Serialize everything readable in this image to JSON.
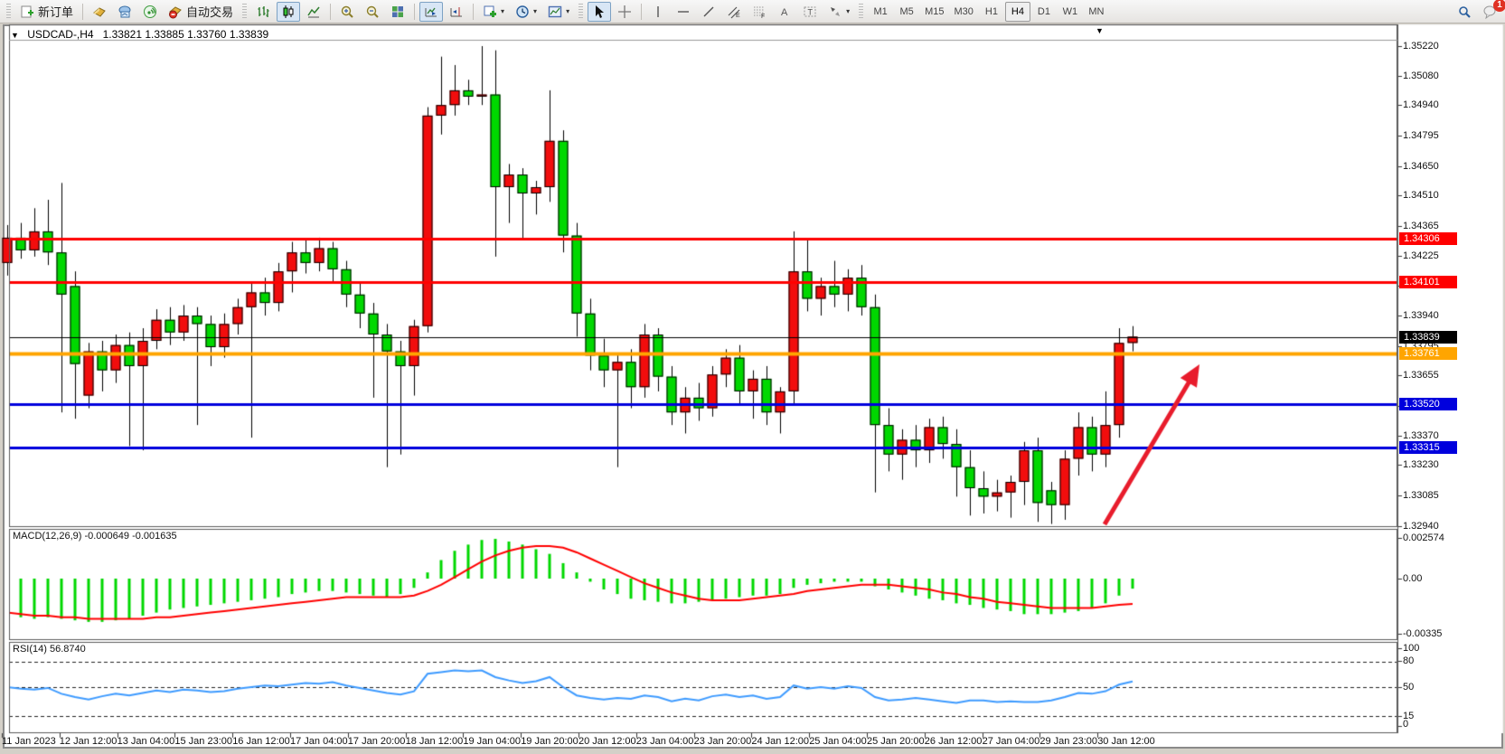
{
  "toolbar": {
    "new_order_label": "新订单",
    "auto_trading_label": "自动交易",
    "timeframes": [
      "M1",
      "M5",
      "M15",
      "M30",
      "H1",
      "H4",
      "D1",
      "W1",
      "MN"
    ],
    "active_timeframe": "H4",
    "notification_count": "1"
  },
  "chart": {
    "symbol": "USDCAD-,H4",
    "open": "1.33821",
    "high": "1.33885",
    "low": "1.33760",
    "close": "1.33839"
  },
  "macd_panel": {
    "label": "MACD(12,26,9) -0.000649 -0.001635",
    "axis_labels": [
      "0.002574",
      "0.00",
      "-0.00335"
    ]
  },
  "rsi_panel": {
    "label": "RSI(14) 56.8740",
    "axis_labels": [
      "100",
      "80",
      "50",
      "15",
      "0"
    ]
  },
  "price_axis_ticks": [
    "1.35220",
    "1.35080",
    "1.34940",
    "1.34795",
    "1.34650",
    "1.34510",
    "1.34365",
    "1.34225",
    "1.34080",
    "1.33940",
    "1.33795",
    "1.33655",
    "1.33510",
    "1.33370",
    "1.33230",
    "1.33085",
    "1.32940"
  ],
  "colors": {
    "bull": "#f20d0d",
    "bear": "#00d800",
    "wick": "#000000",
    "macd_hist": "#00d800",
    "macd_signal": "#ff0000",
    "rsi_line": "#3e9bff",
    "level_red": "#ff0000",
    "level_orange": "#ffa500",
    "level_blue": "#0000dd",
    "current_price": "#000000",
    "arrow": "#e81c2c"
  },
  "chart_data": {
    "type": "candlestick",
    "symbol": "USDCAD",
    "timeframe": "H4",
    "title": "USDCAD-,H4  1.33821 1.33885 1.33760 1.33839",
    "price_range": [
      1.3294,
      1.3522
    ],
    "time_labels": [
      "11 Jan 2023",
      "12 Jan 12:00",
      "13 Jan 04:00",
      "15 Jan 23:00",
      "16 Jan 12:00",
      "17 Jan 04:00",
      "17 Jan 20:00",
      "18 Jan 12:00",
      "19 Jan 04:00",
      "19 Jan 20:00",
      "20 Jan 12:00",
      "23 Jan 04:00",
      "23 Jan 20:00",
      "24 Jan 12:00",
      "25 Jan 04:00",
      "25 Jan 20:00",
      "26 Jan 12:00",
      "27 Jan 04:00",
      "29 Jan 23:00",
      "30 Jan 12:00"
    ],
    "horizontal_lines": [
      {
        "price": 1.34306,
        "label": "1.34306",
        "color_key": "level_red",
        "width": 3
      },
      {
        "price": 1.34101,
        "label": "1.34101",
        "color_key": "level_red",
        "width": 3
      },
      {
        "price": 1.33839,
        "label": "1.33839",
        "color_key": "current_price",
        "width": 1
      },
      {
        "price": 1.33761,
        "label": "1.33761",
        "color_key": "level_orange",
        "width": 4
      },
      {
        "price": 1.3352,
        "label": "1.33520",
        "color_key": "level_blue",
        "width": 3
      },
      {
        "price": 1.33315,
        "label": "1.33315",
        "color_key": "level_blue",
        "width": 3
      }
    ],
    "annotation_arrow": {
      "from": [
        1222,
        580
      ],
      "to": [
        1327,
        403
      ]
    },
    "candles_ohlc": [
      [
        1.3419,
        1.3437,
        1.3413,
        1.3431
      ],
      [
        1.3431,
        1.3438,
        1.3421,
        1.3425
      ],
      [
        1.3425,
        1.3445,
        1.3422,
        1.3434
      ],
      [
        1.3434,
        1.3449,
        1.3418,
        1.3424
      ],
      [
        1.3424,
        1.3457,
        1.3348,
        1.3404
      ],
      [
        1.3408,
        1.3415,
        1.3345,
        1.3371
      ],
      [
        1.3356,
        1.3381,
        1.335,
        1.3377
      ],
      [
        1.3377,
        1.3382,
        1.3358,
        1.3368
      ],
      [
        1.3368,
        1.3385,
        1.3362,
        1.338
      ],
      [
        1.338,
        1.3386,
        1.3332,
        1.337
      ],
      [
        1.337,
        1.3388,
        1.333,
        1.3382
      ],
      [
        1.3382,
        1.3397,
        1.3378,
        1.3392
      ],
      [
        1.3392,
        1.3398,
        1.338,
        1.3386
      ],
      [
        1.3386,
        1.3399,
        1.3382,
        1.3394
      ],
      [
        1.3394,
        1.3398,
        1.3342,
        1.339
      ],
      [
        1.339,
        1.3394,
        1.337,
        1.3379
      ],
      [
        1.3379,
        1.3395,
        1.3374,
        1.339
      ],
      [
        1.339,
        1.3402,
        1.3385,
        1.3398
      ],
      [
        1.3398,
        1.341,
        1.3336,
        1.3405
      ],
      [
        1.3405,
        1.3412,
        1.3394,
        1.34
      ],
      [
        1.34,
        1.3419,
        1.3396,
        1.3415
      ],
      [
        1.3415,
        1.3429,
        1.3405,
        1.3424
      ],
      [
        1.3424,
        1.343,
        1.3414,
        1.3419
      ],
      [
        1.3419,
        1.3431,
        1.3415,
        1.3426
      ],
      [
        1.3426,
        1.3429,
        1.341,
        1.3416
      ],
      [
        1.3416,
        1.342,
        1.3398,
        1.3404
      ],
      [
        1.3404,
        1.341,
        1.3388,
        1.3395
      ],
      [
        1.3395,
        1.34,
        1.3355,
        1.3385
      ],
      [
        1.3385,
        1.339,
        1.3322,
        1.3377
      ],
      [
        1.3377,
        1.3382,
        1.3328,
        1.337
      ],
      [
        1.337,
        1.3392,
        1.3356,
        1.3389
      ],
      [
        1.3389,
        1.3493,
        1.3386,
        1.3489
      ],
      [
        1.3489,
        1.3517,
        1.348,
        1.3494
      ],
      [
        1.3494,
        1.3513,
        1.3489,
        1.3501
      ],
      [
        1.3501,
        1.3506,
        1.3494,
        1.3498
      ],
      [
        1.3498,
        1.3522,
        1.3494,
        1.3499
      ],
      [
        1.3499,
        1.352,
        1.3422,
        1.3455
      ],
      [
        1.3455,
        1.3466,
        1.3438,
        1.3461
      ],
      [
        1.3461,
        1.3464,
        1.343,
        1.3452
      ],
      [
        1.3452,
        1.3458,
        1.3442,
        1.3455
      ],
      [
        1.3455,
        1.3501,
        1.3448,
        1.3477
      ],
      [
        1.3477,
        1.3482,
        1.3424,
        1.3432
      ],
      [
        1.3432,
        1.3438,
        1.3384,
        1.3395
      ],
      [
        1.3395,
        1.3402,
        1.3368,
        1.3375
      ],
      [
        1.3375,
        1.3383,
        1.336,
        1.3368
      ],
      [
        1.3368,
        1.3376,
        1.3322,
        1.3372
      ],
      [
        1.3372,
        1.3378,
        1.335,
        1.336
      ],
      [
        1.336,
        1.339,
        1.3355,
        1.3385
      ],
      [
        1.3385,
        1.3388,
        1.3358,
        1.3365
      ],
      [
        1.3365,
        1.337,
        1.3342,
        1.3348
      ],
      [
        1.3348,
        1.336,
        1.3338,
        1.3355
      ],
      [
        1.3355,
        1.3362,
        1.3344,
        1.335
      ],
      [
        1.335,
        1.337,
        1.3346,
        1.3366
      ],
      [
        1.3366,
        1.3378,
        1.336,
        1.3374
      ],
      [
        1.3374,
        1.338,
        1.3352,
        1.3358
      ],
      [
        1.3358,
        1.3368,
        1.3345,
        1.3364
      ],
      [
        1.3364,
        1.337,
        1.3342,
        1.3348
      ],
      [
        1.3348,
        1.336,
        1.3338,
        1.3358
      ],
      [
        1.3358,
        1.3434,
        1.3352,
        1.3415
      ],
      [
        1.3415,
        1.343,
        1.3396,
        1.3402
      ],
      [
        1.3402,
        1.3412,
        1.3394,
        1.3408
      ],
      [
        1.3408,
        1.342,
        1.3398,
        1.3404
      ],
      [
        1.3404,
        1.3416,
        1.3396,
        1.3412
      ],
      [
        1.3412,
        1.3418,
        1.3394,
        1.3398
      ],
      [
        1.3398,
        1.3404,
        1.331,
        1.3342
      ],
      [
        1.3342,
        1.335,
        1.332,
        1.3328
      ],
      [
        1.3328,
        1.334,
        1.3316,
        1.3335
      ],
      [
        1.3335,
        1.3342,
        1.3322,
        1.333
      ],
      [
        1.333,
        1.3345,
        1.3324,
        1.3341
      ],
      [
        1.3341,
        1.3346,
        1.3326,
        1.3333
      ],
      [
        1.3333,
        1.334,
        1.3308,
        1.3322
      ],
      [
        1.3322,
        1.333,
        1.3299,
        1.3312
      ],
      [
        1.3312,
        1.332,
        1.33,
        1.3308
      ],
      [
        1.3308,
        1.3316,
        1.3301,
        1.331
      ],
      [
        1.331,
        1.3318,
        1.3298,
        1.3315
      ],
      [
        1.3315,
        1.3334,
        1.3304,
        1.333
      ],
      [
        1.333,
        1.3336,
        1.3296,
        1.3305
      ],
      [
        1.3311,
        1.3315,
        1.3295,
        1.3304
      ],
      [
        1.3304,
        1.333,
        1.3297,
        1.3326
      ],
      [
        1.3326,
        1.3348,
        1.3318,
        1.3341
      ],
      [
        1.3341,
        1.3346,
        1.332,
        1.3328
      ],
      [
        1.3328,
        1.3358,
        1.3322,
        1.3342
      ],
      [
        1.3342,
        1.3388,
        1.3336,
        1.3381
      ],
      [
        1.3381,
        1.3389,
        1.3377,
        1.3384
      ]
    ],
    "macd": {
      "params": "12,26,9",
      "current_main": -0.000649,
      "current_signal": -0.001635,
      "axis_range": [
        -0.00335,
        0.002574
      ],
      "histogram": [
        -0.0024,
        -0.0025,
        -0.0026,
        -0.0025,
        -0.0026,
        -0.0027,
        -0.0028,
        -0.0028,
        -0.0027,
        -0.0026,
        -0.0024,
        -0.0022,
        -0.002,
        -0.0019,
        -0.0018,
        -0.0017,
        -0.0016,
        -0.0015,
        -0.0014,
        -0.0013,
        -0.0012,
        -0.001,
        -0.0009,
        -0.0008,
        -0.0008,
        -0.0009,
        -0.001,
        -0.0011,
        -0.0012,
        -0.001,
        -0.0006,
        0.0004,
        0.0012,
        0.0018,
        0.0022,
        0.0025,
        0.00257,
        0.0024,
        0.0022,
        0.0019,
        0.0016,
        0.001,
        0.0004,
        -0.0002,
        -0.0007,
        -0.001,
        -0.0013,
        -0.0014,
        -0.0015,
        -0.0016,
        -0.0016,
        -0.0015,
        -0.0014,
        -0.0013,
        -0.0012,
        -0.0011,
        -0.0011,
        -0.001,
        -0.0006,
        -0.0004,
        -0.0003,
        -0.0002,
        -0.0002,
        -0.0002,
        -0.0005,
        -0.0007,
        -0.0009,
        -0.0011,
        -0.0013,
        -0.0014,
        -0.0016,
        -0.0017,
        -0.0019,
        -0.002,
        -0.0021,
        -0.0023,
        -0.0023,
        -0.0023,
        -0.0022,
        -0.0021,
        -0.0019,
        -0.0016,
        -0.0011,
        -0.00065
      ],
      "signal": [
        -0.0022,
        -0.0023,
        -0.0024,
        -0.0024,
        -0.0025,
        -0.0025,
        -0.0026,
        -0.0026,
        -0.0026,
        -0.0026,
        -0.0026,
        -0.0025,
        -0.0025,
        -0.0024,
        -0.0023,
        -0.0022,
        -0.0021,
        -0.002,
        -0.0019,
        -0.0018,
        -0.0017,
        -0.0016,
        -0.0015,
        -0.0014,
        -0.0013,
        -0.0012,
        -0.0012,
        -0.0012,
        -0.0012,
        -0.0012,
        -0.0011,
        -0.0008,
        -0.0004,
        0.0001,
        0.0006,
        0.0011,
        0.0015,
        0.0018,
        0.002,
        0.0021,
        0.0021,
        0.002,
        0.0017,
        0.0013,
        0.0009,
        0.0005,
        0.0001,
        -0.0003,
        -0.0006,
        -0.0009,
        -0.0011,
        -0.0013,
        -0.0014,
        -0.0014,
        -0.0014,
        -0.0013,
        -0.0012,
        -0.0011,
        -0.001,
        -0.0008,
        -0.0007,
        -0.0006,
        -0.0005,
        -0.0004,
        -0.0004,
        -0.0004,
        -0.0005,
        -0.0006,
        -0.0007,
        -0.0009,
        -0.001,
        -0.0012,
        -0.0013,
        -0.0015,
        -0.0016,
        -0.0017,
        -0.0018,
        -0.0019,
        -0.0019,
        -0.0019,
        -0.0019,
        -0.0018,
        -0.0017,
        -0.001635
      ]
    },
    "rsi": {
      "period": 14,
      "current": 56.874,
      "levels": [
        80,
        50,
        15
      ],
      "values": [
        50,
        48,
        47,
        49,
        42,
        38,
        35,
        39,
        42,
        40,
        43,
        46,
        44,
        47,
        46,
        44,
        45,
        48,
        50,
        52,
        51,
        53,
        55,
        54,
        56,
        52,
        49,
        46,
        43,
        41,
        45,
        66,
        68,
        70,
        69,
        70,
        62,
        58,
        55,
        57,
        62,
        50,
        40,
        37,
        35,
        37,
        36,
        40,
        38,
        33,
        36,
        34,
        39,
        41,
        38,
        40,
        36,
        38,
        52,
        48,
        50,
        48,
        51,
        49,
        38,
        34,
        35,
        37,
        35,
        33,
        31,
        34,
        34,
        32,
        33,
        32,
        32,
        34,
        38,
        43,
        42,
        45,
        53,
        56.87
      ]
    }
  }
}
